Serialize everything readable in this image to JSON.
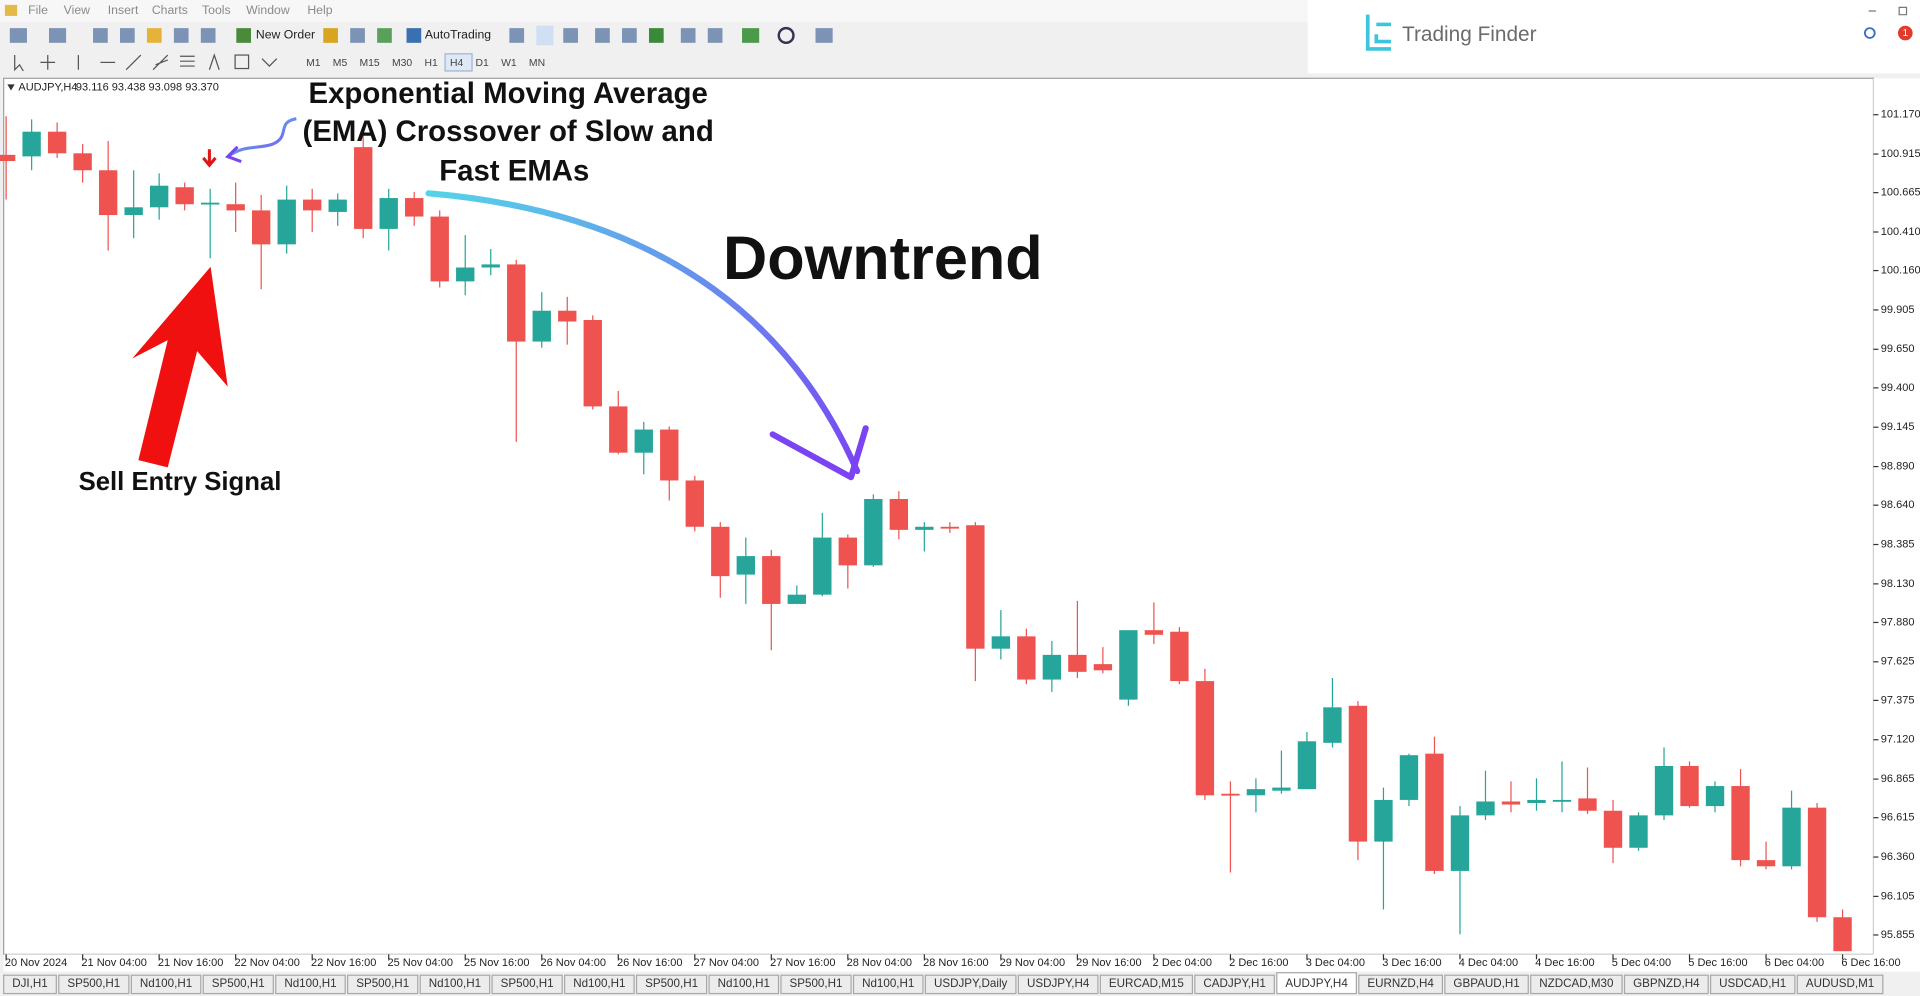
{
  "menu": [
    "File",
    "View",
    "Insert",
    "Charts",
    "Tools",
    "Window",
    "Help"
  ],
  "toolbar": {
    "new_order": "New Order",
    "auto_trading": "AutoTrading",
    "timeframes": [
      "M1",
      "M5",
      "M15",
      "M30",
      "H1",
      "H4",
      "D1",
      "W1",
      "MN"
    ],
    "active_timeframe": 5
  },
  "logo": "Trading Finder",
  "notifications": "1",
  "chart_header": {
    "symbol": "AUDJPY,H4",
    "quote": "93.116 93.438 93.098 93.370"
  },
  "chart_data": {
    "type": "candlestick",
    "annotations": {
      "ema": [
        "Exponential Moving Average",
        "(EMA) Crossover of Slow and",
        "Fast EMAs"
      ],
      "trend": "Downtrend",
      "signal": "Sell Entry Signal"
    },
    "categories": [
      "20 Nov 2024",
      null,
      null,
      "21 Nov 04:00",
      null,
      null,
      "21 Nov 16:00",
      null,
      null,
      "22 Nov 04:00",
      null,
      null,
      "22 Nov 16:00",
      null,
      null,
      "25 Nov 04:00",
      null,
      null,
      "25 Nov 16:00",
      null,
      null,
      "26 Nov 04:00",
      null,
      null,
      "26 Nov 16:00",
      null,
      null,
      "27 Nov 04:00",
      null,
      null,
      "27 Nov 16:00",
      null,
      null,
      "28 Nov 04:00",
      null,
      null,
      "28 Nov 16:00",
      null,
      null,
      "29 Nov 04:00",
      null,
      null,
      "29 Nov 16:00",
      null,
      null,
      "2 Dec 04:00",
      null,
      null,
      "2 Dec 16:00",
      null,
      null,
      "3 Dec 04:00",
      null,
      null,
      "3 Dec 16:00",
      null,
      null,
      "4 Dec 04:00",
      null,
      null,
      "4 Dec 16:00",
      null,
      null,
      "5 Dec 04:00",
      null,
      null,
      "5 Dec 16:00",
      null,
      null,
      "6 Dec 04:00",
      null,
      null,
      "6 Dec 16:00"
    ],
    "open": [
      100.91,
      100.9,
      101.06,
      100.92,
      100.81,
      100.52,
      100.57,
      100.7,
      100.59,
      100.59,
      100.55,
      100.33,
      100.62,
      100.54,
      100.96,
      100.43,
      100.63,
      100.51,
      100.09,
      100.18,
      100.2,
      99.7,
      99.9,
      99.84,
      99.28,
      98.98,
      99.13,
      98.8,
      98.5,
      98.19,
      98.31,
      98.0,
      98.06,
      98.43,
      98.25,
      98.68,
      98.48,
      98.5,
      98.51,
      97.71,
      97.79,
      97.51,
      97.67,
      97.61,
      97.38,
      97.83,
      97.82,
      97.5,
      96.77,
      96.76,
      96.79,
      96.8,
      97.1,
      97.34,
      96.46,
      96.73,
      97.03,
      96.27,
      96.63,
      96.72,
      96.71,
      96.72,
      96.74,
      96.66,
      96.42,
      96.63,
      96.95,
      96.69,
      96.82,
      96.34,
      96.3,
      96.68,
      95.97
    ],
    "high": [
      101.16,
      101.14,
      101.12,
      100.98,
      101.0,
      100.81,
      100.79,
      100.73,
      100.69,
      100.73,
      100.65,
      100.71,
      100.69,
      100.66,
      101.04,
      100.69,
      100.67,
      100.55,
      100.39,
      100.3,
      100.23,
      100.02,
      99.99,
      99.87,
      99.38,
      99.18,
      99.15,
      98.83,
      98.53,
      98.43,
      98.35,
      98.12,
      98.59,
      98.45,
      98.71,
      98.73,
      98.53,
      98.53,
      98.53,
      97.96,
      97.84,
      97.76,
      98.02,
      97.72,
      97.83,
      98.01,
      97.85,
      97.58,
      96.85,
      96.87,
      97.05,
      97.17,
      97.52,
      97.37,
      96.81,
      97.03,
      97.14,
      96.69,
      96.92,
      96.85,
      96.87,
      96.98,
      96.94,
      96.73,
      96.65,
      97.07,
      96.98,
      96.85,
      96.93,
      96.46,
      96.79,
      96.71,
      96.02
    ],
    "low": [
      100.62,
      100.81,
      100.89,
      100.73,
      100.29,
      100.37,
      100.49,
      100.55,
      100.24,
      100.41,
      100.04,
      100.27,
      100.41,
      100.45,
      100.37,
      100.29,
      100.45,
      100.05,
      100.0,
      100.13,
      99.05,
      99.66,
      99.68,
      99.26,
      98.97,
      98.84,
      98.67,
      98.47,
      98.04,
      98.0,
      97.7,
      98.0,
      98.05,
      98.1,
      98.24,
      98.42,
      98.34,
      98.46,
      97.5,
      97.64,
      97.48,
      97.43,
      97.52,
      97.55,
      97.34,
      97.74,
      97.48,
      96.73,
      96.26,
      96.65,
      96.77,
      96.8,
      97.07,
      96.34,
      96.02,
      96.69,
      96.25,
      95.86,
      96.6,
      96.65,
      96.66,
      96.65,
      96.64,
      96.32,
      96.4,
      96.6,
      96.68,
      96.65,
      96.3,
      96.28,
      96.28,
      95.94,
      95.75
    ],
    "close": [
      100.87,
      101.06,
      100.92,
      100.81,
      100.52,
      100.57,
      100.71,
      100.59,
      100.6,
      100.55,
      100.33,
      100.62,
      100.55,
      100.62,
      100.43,
      100.63,
      100.51,
      100.09,
      100.18,
      100.2,
      99.7,
      99.9,
      99.83,
      99.28,
      98.98,
      99.13,
      98.8,
      98.5,
      98.18,
      98.31,
      98.0,
      98.06,
      98.43,
      98.25,
      98.68,
      98.48,
      98.5,
      98.49,
      97.71,
      97.79,
      97.51,
      97.67,
      97.56,
      97.57,
      97.83,
      97.8,
      97.5,
      96.76,
      96.76,
      96.8,
      96.81,
      97.11,
      97.33,
      96.46,
      96.73,
      97.02,
      96.27,
      96.63,
      96.72,
      96.7,
      96.73,
      96.73,
      96.66,
      96.42,
      96.63,
      96.95,
      96.69,
      96.82,
      96.34,
      96.3,
      96.68,
      95.97,
      95.75
    ],
    "up_color": "#26a69a",
    "down_color": "#ef5350",
    "ylim": [
      95.745,
      101.39
    ],
    "yticks": [
      {
        "value": 101.17,
        "label": "101.170"
      },
      100.915,
      100.665,
      {
        "value": 100.41,
        "label": "100.410"
      },
      {
        "value": 100.16,
        "label": "100.160"
      },
      99.905,
      {
        "value": 99.65,
        "label": "99.650"
      },
      {
        "value": 99.4,
        "label": "99.400"
      },
      99.145,
      {
        "value": 98.89,
        "label": "98.890"
      },
      {
        "value": 98.64,
        "label": "98.640"
      },
      98.385,
      {
        "value": 98.13,
        "label": "98.130"
      },
      {
        "value": 97.88,
        "label": "97.880"
      },
      97.625,
      97.375,
      {
        "value": 97.12,
        "label": "97.120"
      },
      96.865,
      96.615,
      {
        "value": 96.36,
        "label": "96.360"
      },
      96.105,
      95.855
    ],
    "grid": false
  },
  "tabs": [
    "DJI,H1",
    "SP500,H1",
    "Nd100,H1",
    "SP500,H1",
    "Nd100,H1",
    "SP500,H1",
    "Nd100,H1",
    "SP500,H1",
    "Nd100,H1",
    "SP500,H1",
    "Nd100,H1",
    "SP500,H1",
    "Nd100,H1",
    "USDJPY,Daily",
    "USDJPY,H4",
    "EURCAD,M15",
    "CADJPY,H1",
    "AUDJPY,H4",
    "EURNZD,H4",
    "GBPAUD,H1",
    "NZDCAD,M30",
    "GBPNZD,H4",
    "USDCAD,H1",
    "AUDUSD,M1"
  ],
  "active_tab": 17
}
